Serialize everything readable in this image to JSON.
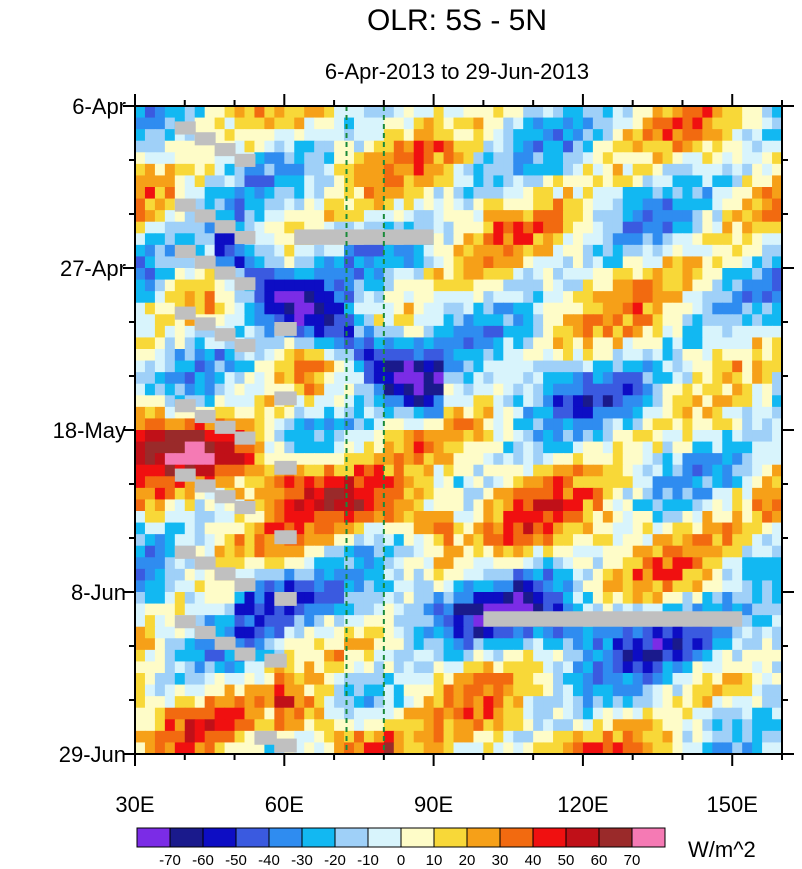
{
  "chart_data": {
    "type": "heatmap",
    "title": "OLR: 5S - 5N",
    "subtitle": "6-Apr-2013 to 29-Jun-2013",
    "x_axis": {
      "label": "",
      "range": [
        30,
        160
      ],
      "unit": "degrees east longitude",
      "ticks": [
        {
          "value": 30,
          "label": "30E"
        },
        {
          "value": 60,
          "label": "60E"
        },
        {
          "value": 90,
          "label": "90E"
        },
        {
          "value": 120,
          "label": "120E"
        },
        {
          "value": 150,
          "label": "150E"
        }
      ],
      "minor_tick_step": 10
    },
    "y_axis": {
      "label": "",
      "range": [
        0,
        84
      ],
      "unit": "days since 6-Apr-2013 (downward)",
      "ticks": [
        {
          "value": 0,
          "label": "6-Apr"
        },
        {
          "value": 21,
          "label": "27-Apr"
        },
        {
          "value": 42,
          "label": "18-May"
        },
        {
          "value": 63,
          "label": "8-Jun"
        },
        {
          "value": 84,
          "label": "29-Jun"
        }
      ],
      "minor_tick_step": 7
    },
    "reference_lines": [
      {
        "x": 72.5,
        "style": "dashed",
        "color": "#1a8a3a"
      },
      {
        "x": 80,
        "style": "dashed",
        "color": "#1a8a3a"
      }
    ],
    "colorbar": {
      "units": "W/m^2",
      "levels": [
        -70,
        -60,
        -50,
        -40,
        -30,
        -20,
        -10,
        0,
        10,
        20,
        30,
        40,
        50,
        60,
        70
      ],
      "level_labels": [
        "-70",
        "-60",
        "-50",
        "-40",
        "-30",
        "-20",
        "-10",
        "0",
        "10",
        "20",
        "30",
        "40",
        "50",
        "60",
        "70"
      ],
      "colors": [
        "#7b2ce6",
        "#1a1a8c",
        "#0d0dc4",
        "#3a5ae0",
        "#2f8cf0",
        "#12b8f2",
        "#9fd0f8",
        "#d8f4fc",
        "#fefcc8",
        "#f8d838",
        "#f6a018",
        "#f26a10",
        "#f01010",
        "#c01018",
        "#9a2a2a",
        "#f57ab4"
      ]
    },
    "features": [
      {
        "name": "Eastward-propagating convective (negative OLR) band",
        "start_lon": 50,
        "start_day": 20,
        "end_lon": 88,
        "end_day": 37,
        "anomaly": -70
      },
      {
        "name": "Suppressed convection (positive OLR) band",
        "start_lon": 35,
        "start_day": 43,
        "end_lon": 90,
        "end_day": 54,
        "anomaly": 50
      },
      {
        "name": "Convective (negative OLR) band",
        "start_lon": 55,
        "start_day": 63,
        "end_lon": 160,
        "end_day": 70,
        "anomaly": -40
      },
      {
        "name": "Positive OLR near 60E-80E",
        "start_lon": 62,
        "start_day": 78,
        "end_lon": 78,
        "end_day": 84,
        "anomaly": 45
      }
    ],
    "missing_data_note": "gray boxes indicate missing data"
  }
}
